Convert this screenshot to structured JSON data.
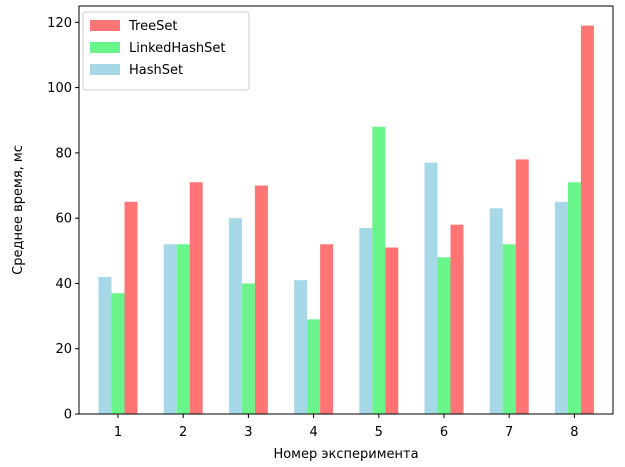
{
  "chart_data": {
    "type": "bar",
    "xlabel": "Номер эксперимента",
    "ylabel": "Среднее время, мс",
    "categories": [
      "1",
      "2",
      "3",
      "4",
      "5",
      "6",
      "7",
      "8"
    ],
    "ylim": [
      0,
      125
    ],
    "yticks": [
      0,
      20,
      40,
      60,
      80,
      100,
      120
    ],
    "grid": false,
    "legend_position": "top-left",
    "series": [
      {
        "name": "HashSet",
        "color": "#a6d8e7",
        "values": [
          42,
          52,
          60,
          41,
          57,
          77,
          63,
          65
        ]
      },
      {
        "name": "LinkedHashSet",
        "color": "#6af58a",
        "values": [
          37,
          52,
          40,
          29,
          88,
          48,
          52,
          71
        ]
      },
      {
        "name": "TreeSet",
        "color": "#ff7474",
        "values": [
          65,
          71,
          70,
          52,
          51,
          58,
          78,
          119
        ]
      }
    ],
    "legend_order": [
      "TreeSet",
      "LinkedHashSet",
      "HashSet"
    ]
  }
}
